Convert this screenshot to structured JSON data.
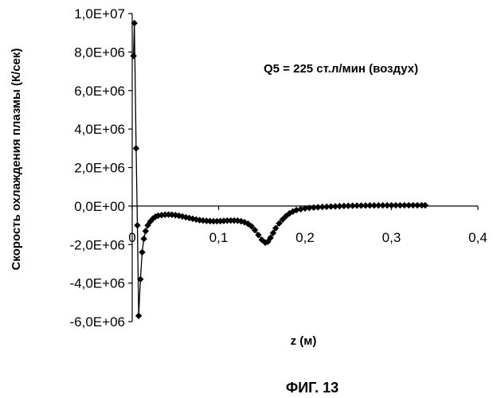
{
  "chart_data": {
    "type": "scatter",
    "title": "",
    "xlabel": "z (м)",
    "ylabel": "Скорость охлаждения плазмы (К/сек)",
    "annotation": "Q5 = 225 ст.л/мин (воздух)",
    "caption": "ФИГ. 13",
    "xlim": [
      0,
      0.4
    ],
    "ylim": [
      -6000000,
      10000000
    ],
    "xticks": [
      0,
      0.1,
      0.2,
      0.3,
      0.4
    ],
    "xtick_labels": [
      "0",
      "0,1",
      "0,2",
      "0,3",
      "0,4"
    ],
    "yticks": [
      10000000,
      8000000,
      6000000,
      4000000,
      2000000,
      0,
      -2000000,
      -4000000,
      -6000000
    ],
    "ytick_labels": [
      "1,0E+07",
      "8,0E+06",
      "6,0E+06",
      "4,0E+06",
      "2,0E+06",
      "0,0E+00",
      "-2,0E+06",
      "-4,0E+06",
      "-6,0E+06"
    ],
    "grid": false,
    "series": [
      {
        "marker": "diamond",
        "color": "#000000",
        "points": [
          [
            0.0015,
            7800000
          ],
          [
            0.0025,
            9500000
          ],
          [
            0.0045,
            3000000
          ],
          [
            0.006,
            -1000000
          ],
          [
            0.0075,
            -5700000
          ],
          [
            0.0095,
            -3800000
          ],
          [
            0.0115,
            -2400000
          ],
          [
            0.0135,
            -1700000
          ],
          [
            0.0155,
            -1300000
          ],
          [
            0.018,
            -1000000
          ],
          [
            0.021,
            -800000
          ],
          [
            0.024,
            -650000
          ],
          [
            0.027,
            -550000
          ],
          [
            0.03,
            -500000
          ],
          [
            0.034,
            -470000
          ],
          [
            0.038,
            -450000
          ],
          [
            0.042,
            -440000
          ],
          [
            0.046,
            -450000
          ],
          [
            0.05,
            -470000
          ],
          [
            0.054,
            -500000
          ],
          [
            0.058,
            -540000
          ],
          [
            0.062,
            -580000
          ],
          [
            0.066,
            -620000
          ],
          [
            0.07,
            -660000
          ],
          [
            0.074,
            -700000
          ],
          [
            0.078,
            -730000
          ],
          [
            0.082,
            -750000
          ],
          [
            0.086,
            -770000
          ],
          [
            0.09,
            -780000
          ],
          [
            0.094,
            -790000
          ],
          [
            0.098,
            -790000
          ],
          [
            0.102,
            -780000
          ],
          [
            0.106,
            -770000
          ],
          [
            0.11,
            -760000
          ],
          [
            0.114,
            -750000
          ],
          [
            0.118,
            -750000
          ],
          [
            0.122,
            -760000
          ],
          [
            0.126,
            -790000
          ],
          [
            0.13,
            -840000
          ],
          [
            0.134,
            -920000
          ],
          [
            0.138,
            -1050000
          ],
          [
            0.142,
            -1250000
          ],
          [
            0.146,
            -1500000
          ],
          [
            0.15,
            -1750000
          ],
          [
            0.154,
            -1900000
          ],
          [
            0.157,
            -1850000
          ],
          [
            0.16,
            -1650000
          ],
          [
            0.163,
            -1400000
          ],
          [
            0.166,
            -1150000
          ],
          [
            0.17,
            -900000
          ],
          [
            0.174,
            -700000
          ],
          [
            0.178,
            -520000
          ],
          [
            0.182,
            -380000
          ],
          [
            0.186,
            -280000
          ],
          [
            0.19,
            -210000
          ],
          [
            0.195,
            -160000
          ],
          [
            0.2,
            -120000
          ],
          [
            0.205,
            -95000
          ],
          [
            0.21,
            -75000
          ],
          [
            0.215,
            -60000
          ],
          [
            0.22,
            -45000
          ],
          [
            0.225,
            -35000
          ],
          [
            0.23,
            -25000
          ],
          [
            0.235,
            -15000
          ],
          [
            0.24,
            -5000
          ],
          [
            0.245,
            5000
          ],
          [
            0.25,
            12000
          ],
          [
            0.255,
            18000
          ],
          [
            0.26,
            22000
          ],
          [
            0.265,
            25000
          ],
          [
            0.27,
            28000
          ],
          [
            0.275,
            30000
          ],
          [
            0.28,
            32000
          ],
          [
            0.285,
            33000
          ],
          [
            0.29,
            34000
          ],
          [
            0.295,
            35000
          ],
          [
            0.3,
            36000
          ],
          [
            0.305,
            37000
          ],
          [
            0.31,
            38000
          ],
          [
            0.315,
            38000
          ],
          [
            0.32,
            39000
          ],
          [
            0.325,
            39000
          ],
          [
            0.33,
            40000
          ],
          [
            0.335,
            40000
          ],
          [
            0.339,
            40000
          ]
        ]
      }
    ]
  }
}
